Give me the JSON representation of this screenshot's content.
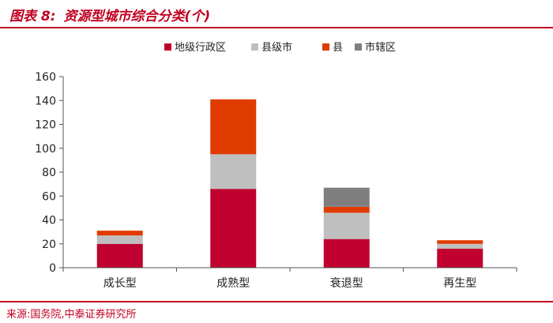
{
  "header": {
    "figure_label": "图表 8:",
    "title": "资源型城市综合分类(个)"
  },
  "footer": {
    "source": "来源:国务院,中泰证券研究所"
  },
  "colors": {
    "accent": "#c00020"
  },
  "chart_data": {
    "type": "bar",
    "stacked": true,
    "categories": [
      "成长型",
      "成熟型",
      "衰退型",
      "再生型"
    ],
    "series": [
      {
        "name": "地级行政区",
        "color": "#c0002f",
        "values": [
          20,
          66,
          24,
          16
        ]
      },
      {
        "name": "县级市",
        "color": "#bfbfbf",
        "values": [
          7,
          29,
          22,
          4
        ]
      },
      {
        "name": "县",
        "color": "#e03c00",
        "values": [
          4,
          46,
          5,
          3
        ]
      },
      {
        "name": "市辖区",
        "color": "#7f7f7f",
        "values": [
          0,
          0,
          16,
          0
        ]
      }
    ],
    "ylim": [
      0,
      160
    ],
    "yticks": [
      0,
      20,
      40,
      60,
      80,
      100,
      120,
      140,
      160
    ],
    "legend_position": "top-center",
    "grid": false
  }
}
